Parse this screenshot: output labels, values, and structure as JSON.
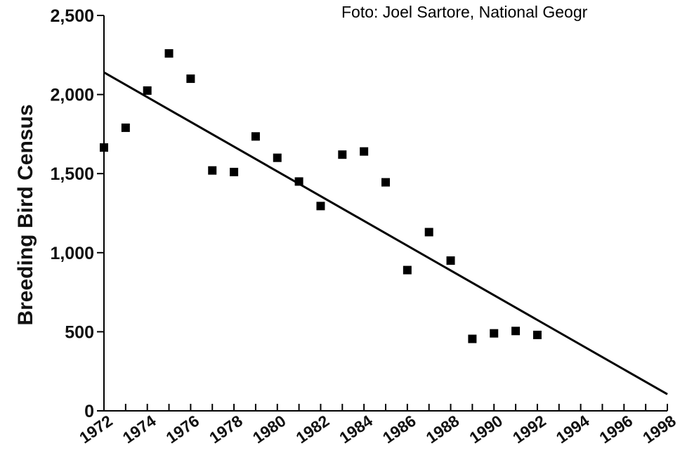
{
  "credit": "Foto: Joel Sartore, National Geogr",
  "chart_data": {
    "type": "scatter",
    "ylabel": "Breeding Bird Census",
    "xlabel": "",
    "xlim": [
      1972,
      1998
    ],
    "ylim": [
      0,
      2500
    ],
    "yticks": [
      0,
      500,
      1000,
      1500,
      2000,
      2500
    ],
    "ytick_labels": [
      "0",
      "500",
      "1,000",
      "1,500",
      "2,000",
      "2,500"
    ],
    "xtick_labels": [
      "1972",
      "1974",
      "1976",
      "1978",
      "1980",
      "1982",
      "1984",
      "1986",
      "1988",
      "1990",
      "1992",
      "1994",
      "1996",
      "1998"
    ],
    "x_minor_ticks_every": 1,
    "grid": false,
    "points": [
      {
        "x": 1972,
        "y": 1665
      },
      {
        "x": 1973,
        "y": 1790
      },
      {
        "x": 1974,
        "y": 2025
      },
      {
        "x": 1975,
        "y": 2260
      },
      {
        "x": 1976,
        "y": 2100
      },
      {
        "x": 1977,
        "y": 1520
      },
      {
        "x": 1978,
        "y": 1510
      },
      {
        "x": 1979,
        "y": 1735
      },
      {
        "x": 1980,
        "y": 1600
      },
      {
        "x": 1981,
        "y": 1450
      },
      {
        "x": 1982,
        "y": 1295
      },
      {
        "x": 1983,
        "y": 1620
      },
      {
        "x": 1984,
        "y": 1640
      },
      {
        "x": 1985,
        "y": 1445
      },
      {
        "x": 1986,
        "y": 890
      },
      {
        "x": 1987,
        "y": 1130
      },
      {
        "x": 1988,
        "y": 950
      },
      {
        "x": 1989,
        "y": 455
      },
      {
        "x": 1990,
        "y": 490
      },
      {
        "x": 1991,
        "y": 505
      },
      {
        "x": 1992,
        "y": 480
      }
    ],
    "trend_line": {
      "x": [
        1972,
        1998
      ],
      "y": [
        2140,
        105
      ]
    },
    "colors": {
      "marker": "#000000",
      "line": "#000000",
      "axis": "#000000"
    }
  }
}
